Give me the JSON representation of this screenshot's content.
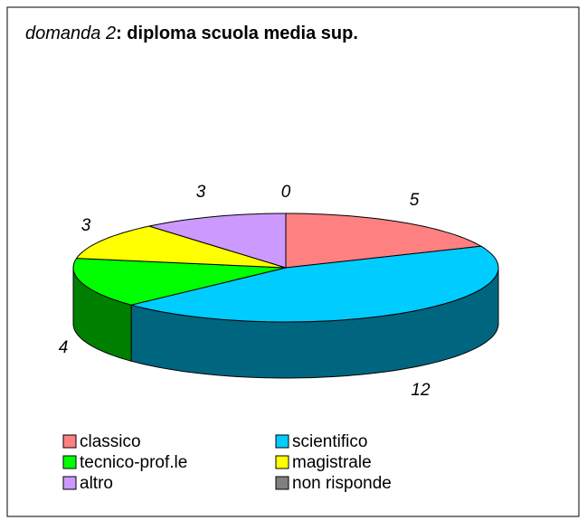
{
  "chart_data": {
    "type": "pie3d",
    "title_parts": [
      "domanda 2",
      ": diploma scuola media sup."
    ],
    "series": [
      {
        "name": "classico",
        "color": "#FF8080",
        "values": [
          5
        ]
      },
      {
        "name": "scientifico",
        "color": "#00CCFF",
        "values": [
          12
        ]
      },
      {
        "name": "tecnico-prof.le",
        "color": "#00FF00",
        "values": [
          4
        ]
      },
      {
        "name": "magistrale",
        "color": "#FFFF00",
        "values": [
          3
        ]
      },
      {
        "name": "altro",
        "color": "#CC99FF",
        "values": [
          3
        ]
      },
      {
        "name": "non risponde",
        "color": "#808080",
        "values": [
          0
        ]
      }
    ],
    "legend": "bottom"
  }
}
